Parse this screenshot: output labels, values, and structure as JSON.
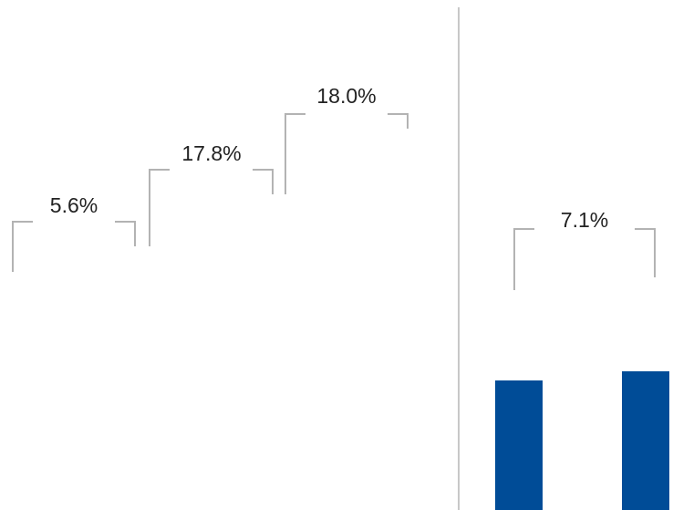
{
  "chart_data": {
    "type": "bar",
    "colors": {
      "bar": "#004c97",
      "bracket": "#b3b3b3",
      "divider": "#c8c8c8",
      "text": "#222222"
    },
    "left_panel": {
      "growth_annotations": [
        "5.6%",
        "17.8%",
        "18.0%"
      ]
    },
    "right_panel": {
      "growth_annotations": [
        "7.1%"
      ],
      "bars": [
        {
          "value": 100
        },
        {
          "value": 107.1
        }
      ]
    }
  }
}
